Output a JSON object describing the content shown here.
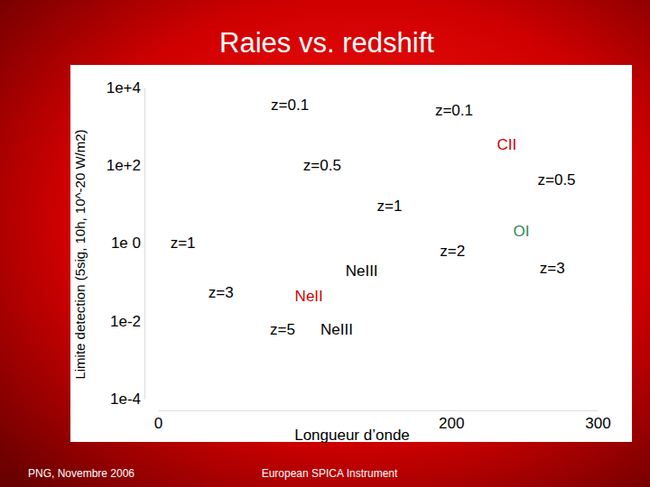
{
  "chart_data": {
    "type": "scatter",
    "title": "Raies vs. redshift",
    "x_label": "Longueur d’onde",
    "y_label": "Limite detection (5sig, 10h, 10^-20 W/m2)",
    "log": "y",
    "marker": "text",
    "x": [
      90,
      202,
      112,
      272,
      158,
      17,
      201,
      269,
      43,
      85
    ],
    "values": [
      3500,
      2600,
      100,
      43,
      8.7,
      1,
      0.63,
      0.23,
      0.054,
      0.0058
    ],
    "labels": [
      "z=0.1",
      "z=0.1",
      "z=0.5",
      "z=0.5",
      "z=1",
      "z=1",
      "z=2",
      "z=3",
      "z=3",
      "z=5"
    ],
    "annotations": [
      {
        "text": "CII",
        "x": 238,
        "y": 330,
        "color": "#cc0000"
      },
      {
        "text": "OI",
        "x": 248,
        "y": 2.0,
        "color": "#2e8b57"
      },
      {
        "text": "NeIII",
        "x": 139,
        "y": 0.19,
        "color": "#000000"
      },
      {
        "text": "NeII",
        "x": 103,
        "y": 0.044,
        "color": "#cc0000"
      },
      {
        "text": "NeIII",
        "x": 122,
        "y": 0.0058,
        "color": "#000000"
      }
    ],
    "xlim": [
      0,
      300
    ],
    "ylim": [
      0.0001,
      10000
    ],
    "xticks": [
      0,
      200,
      300
    ],
    "yticks": [
      {
        "value": 10000,
        "label": "1e+4"
      },
      {
        "value": 100,
        "label": "1e+2"
      },
      {
        "value": 1,
        "label": "1e 0"
      },
      {
        "value": 0.01,
        "label": "1e-2"
      },
      {
        "value": 0.0001,
        "label": "1e-4"
      }
    ],
    "footer": [
      "PNG, Novembre 2006",
      "European SPICA Instrument"
    ]
  }
}
